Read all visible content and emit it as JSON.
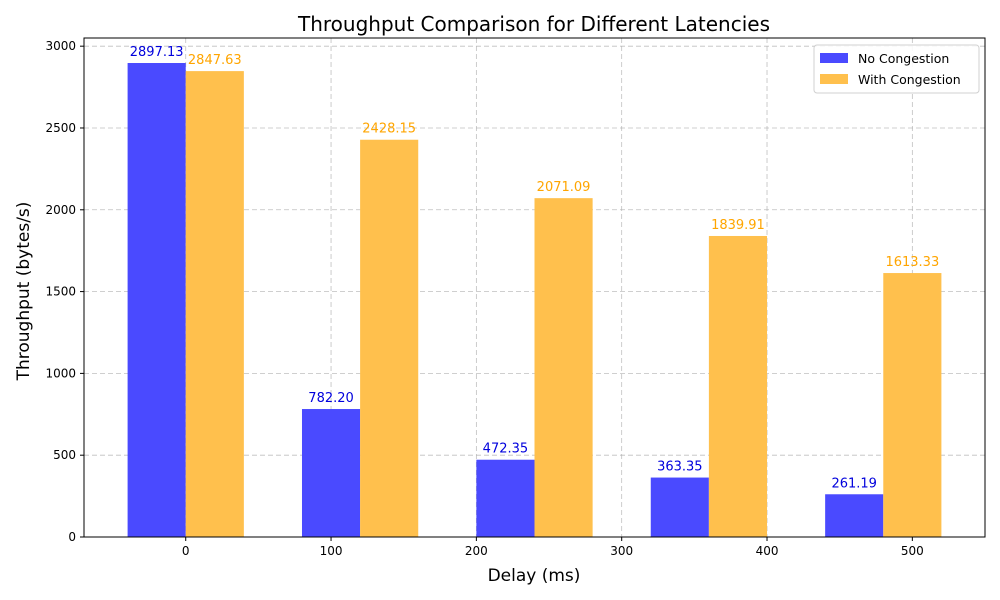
{
  "chart_data": {
    "type": "bar",
    "title": "Throughput Comparison for Different Latencies",
    "xlabel": "Delay (ms)",
    "ylabel": "Throughput (bytes/s)",
    "x": [
      0,
      100,
      200,
      300,
      400
    ],
    "xlim": [
      -70,
      550
    ],
    "ylim": [
      0,
      3050
    ],
    "xticks": [
      0,
      100,
      200,
      300,
      400,
      500
    ],
    "yticks": [
      0,
      500,
      1000,
      1500,
      2000,
      2500,
      3000
    ],
    "bar_width": 40,
    "grid": true,
    "legend_position": "top-right",
    "series": [
      {
        "name": "No Congestion",
        "color": "#4a4aff",
        "label_color": "#0000dd",
        "x": [
          0,
          120,
          240,
          360,
          480
        ],
        "values": [
          2897.13,
          782.2,
          472.35,
          363.35,
          261.19
        ],
        "labels": [
          "2897.13",
          "782.20",
          "472.35",
          "363.35",
          "261.19"
        ]
      },
      {
        "name": "With Congestion",
        "color": "#ffc04d",
        "label_color": "#ffa500",
        "x": [
          0,
          120,
          240,
          360,
          480
        ],
        "values": [
          2847.63,
          2428.15,
          2071.09,
          1839.91,
          1613.33
        ],
        "labels": [
          "2847.63",
          "2428.15",
          "2071.09",
          "1839.91",
          "1613.33"
        ]
      }
    ]
  }
}
